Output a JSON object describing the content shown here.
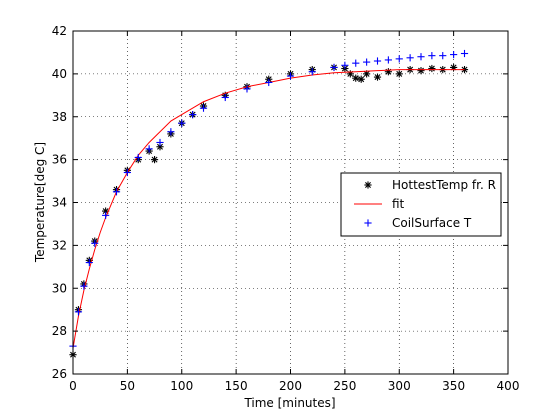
{
  "chart_data": {
    "type": "line",
    "xlabel": "Time [minutes]",
    "ylabel": "Temperature[deg C]",
    "xlim": [
      0,
      400
    ],
    "ylim": [
      26,
      42
    ],
    "xticks": [
      0,
      50,
      100,
      150,
      200,
      250,
      300,
      350,
      400
    ],
    "yticks": [
      26,
      28,
      30,
      32,
      34,
      36,
      38,
      40,
      42
    ],
    "xtick_labels": [
      "0",
      "50",
      "100",
      "150",
      "200",
      "250",
      "300",
      "350",
      "400"
    ],
    "ytick_labels": [
      "26",
      "28",
      "30",
      "32",
      "34",
      "36",
      "38",
      "40",
      "42"
    ],
    "grid": true,
    "legend_position": "right",
    "series": [
      {
        "name": "HottestTemp fr. R",
        "marker": "asterisk",
        "color": "#000000",
        "x": [
          0,
          5,
          10,
          15,
          20,
          30,
          40,
          50,
          60,
          70,
          75,
          80,
          90,
          100,
          110,
          120,
          140,
          160,
          180,
          200,
          220,
          240,
          250,
          255,
          260,
          265,
          270,
          280,
          290,
          300,
          310,
          320,
          330,
          340,
          350,
          360
        ],
        "y": [
          26.9,
          29.0,
          30.2,
          31.3,
          32.2,
          33.6,
          34.6,
          35.5,
          36.0,
          36.4,
          36.0,
          36.6,
          37.2,
          37.7,
          38.1,
          38.5,
          39.0,
          39.4,
          39.75,
          40.0,
          40.2,
          40.3,
          40.25,
          40.0,
          39.8,
          39.75,
          40.0,
          39.85,
          40.1,
          40.0,
          40.2,
          40.15,
          40.25,
          40.2,
          40.3,
          40.2
        ]
      },
      {
        "name": "fit",
        "marker": "line",
        "color": "#ff0000",
        "x": [
          0,
          5,
          10,
          15,
          20,
          25,
          30,
          40,
          50,
          60,
          70,
          80,
          90,
          100,
          120,
          140,
          160,
          180,
          200,
          220,
          240,
          260,
          280,
          300,
          320,
          340,
          360
        ],
        "y": [
          27.2,
          28.7,
          29.9,
          30.9,
          31.8,
          32.6,
          33.3,
          34.5,
          35.4,
          36.2,
          36.8,
          37.3,
          37.8,
          38.1,
          38.7,
          39.1,
          39.4,
          39.6,
          39.8,
          39.95,
          40.05,
          40.1,
          40.15,
          40.2,
          40.2,
          40.2,
          40.2
        ]
      },
      {
        "name": "CoilSurface T",
        "marker": "plus",
        "color": "#0000ff",
        "x": [
          0,
          5,
          10,
          15,
          20,
          30,
          40,
          50,
          60,
          70,
          80,
          90,
          100,
          110,
          120,
          140,
          160,
          180,
          200,
          220,
          240,
          250,
          260,
          270,
          280,
          290,
          300,
          310,
          320,
          330,
          340,
          350,
          360
        ],
        "y": [
          27.3,
          28.9,
          30.1,
          31.2,
          32.1,
          33.4,
          34.5,
          35.4,
          36.1,
          36.5,
          36.8,
          37.3,
          37.7,
          38.1,
          38.4,
          38.9,
          39.3,
          39.6,
          39.9,
          40.1,
          40.3,
          40.4,
          40.5,
          40.55,
          40.6,
          40.65,
          40.7,
          40.75,
          40.8,
          40.85,
          40.85,
          40.9,
          40.95
        ]
      }
    ]
  }
}
